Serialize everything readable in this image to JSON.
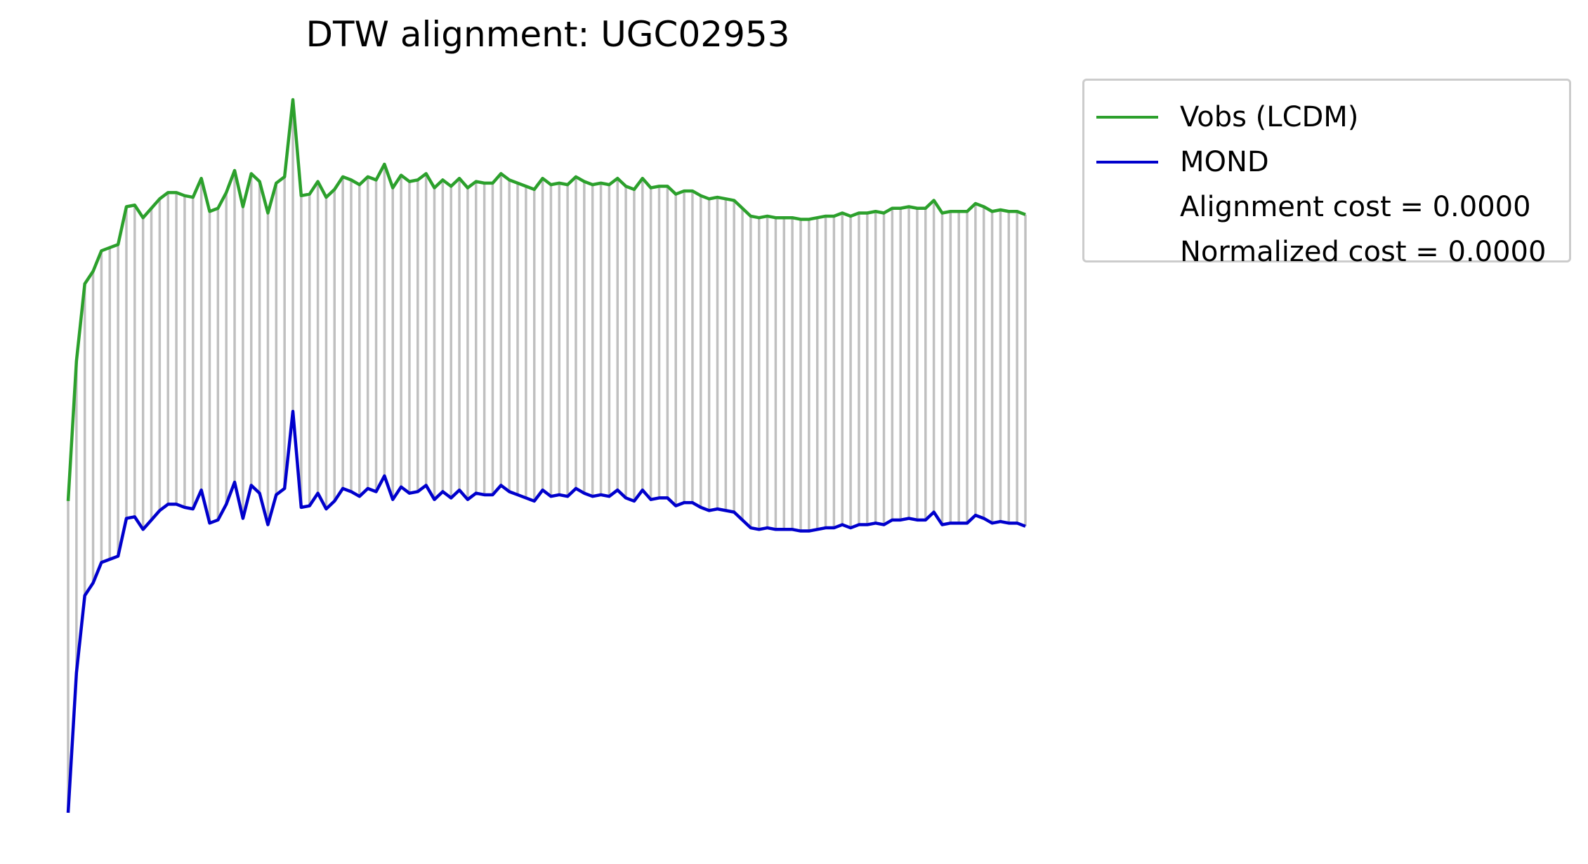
{
  "chart_data": {
    "type": "line",
    "title": "DTW alignment: UGC02953",
    "xlabel": "",
    "ylabel": "",
    "axes_visible": false,
    "grid": false,
    "legend_placement": "outside-upper-right",
    "legend": [
      {
        "label": "Vobs (LCDM)",
        "color": "#2ca02c",
        "type": "line"
      },
      {
        "label": "MOND",
        "color": "#0000cc",
        "type": "line"
      },
      {
        "label": "Alignment cost = 0.0000",
        "type": "text"
      },
      {
        "label": "Normalized cost = 0.0000",
        "type": "text"
      }
    ],
    "alignment_lines_color": "#c0c0c0",
    "series": [
      {
        "name": "Vobs (LCDM)",
        "color": "#2ca02c",
        "values": [
          1.08,
          1.97,
          2.46,
          2.54,
          2.67,
          2.69,
          2.71,
          2.95,
          2.96,
          2.88,
          2.94,
          3.0,
          3.04,
          3.04,
          3.02,
          3.01,
          3.13,
          2.92,
          2.94,
          3.04,
          3.18,
          2.95,
          3.16,
          3.11,
          2.91,
          3.1,
          3.14,
          3.63,
          3.02,
          3.03,
          3.11,
          3.01,
          3.06,
          3.14,
          3.12,
          3.09,
          3.14,
          3.12,
          3.22,
          3.07,
          3.15,
          3.11,
          3.12,
          3.16,
          3.07,
          3.12,
          3.08,
          3.13,
          3.07,
          3.11,
          3.1,
          3.1,
          3.16,
          3.12,
          3.1,
          3.08,
          3.06,
          3.13,
          3.09,
          3.1,
          3.09,
          3.14,
          3.11,
          3.09,
          3.1,
          3.09,
          3.13,
          3.08,
          3.06,
          3.13,
          3.07,
          3.08,
          3.08,
          3.03,
          3.05,
          3.05,
          3.02,
          3.0,
          3.01,
          3.0,
          2.99,
          2.94,
          2.89,
          2.88,
          2.89,
          2.88,
          2.88,
          2.88,
          2.87,
          2.87,
          2.88,
          2.89,
          2.89,
          2.91,
          2.89,
          2.91,
          2.91,
          2.92,
          2.91,
          2.94,
          2.94,
          2.95,
          2.94,
          2.94,
          2.99,
          2.91,
          2.92,
          2.92,
          2.92,
          2.97,
          2.95,
          2.92,
          2.93,
          2.92,
          2.92,
          2.9
        ]
      },
      {
        "name": "MOND",
        "color": "#0000cc",
        "values": [
          -0.9,
          -0.01,
          0.48,
          0.56,
          0.69,
          0.71,
          0.73,
          0.97,
          0.98,
          0.9,
          0.96,
          1.02,
          1.06,
          1.06,
          1.04,
          1.03,
          1.15,
          0.94,
          0.96,
          1.06,
          1.2,
          0.97,
          1.18,
          1.13,
          0.93,
          1.12,
          1.16,
          1.65,
          1.04,
          1.05,
          1.13,
          1.03,
          1.08,
          1.16,
          1.14,
          1.11,
          1.16,
          1.14,
          1.24,
          1.09,
          1.17,
          1.13,
          1.14,
          1.18,
          1.09,
          1.14,
          1.1,
          1.15,
          1.09,
          1.13,
          1.12,
          1.12,
          1.18,
          1.14,
          1.12,
          1.1,
          1.08,
          1.15,
          1.11,
          1.12,
          1.11,
          1.16,
          1.13,
          1.11,
          1.12,
          1.11,
          1.15,
          1.1,
          1.08,
          1.15,
          1.09,
          1.1,
          1.1,
          1.05,
          1.07,
          1.07,
          1.04,
          1.02,
          1.03,
          1.02,
          1.01,
          0.96,
          0.91,
          0.9,
          0.91,
          0.9,
          0.9,
          0.9,
          0.89,
          0.89,
          0.9,
          0.91,
          0.91,
          0.93,
          0.91,
          0.93,
          0.93,
          0.94,
          0.93,
          0.96,
          0.96,
          0.97,
          0.96,
          0.96,
          1.01,
          0.93,
          0.94,
          0.94,
          0.94,
          0.99,
          0.97,
          0.94,
          0.95,
          0.94,
          0.94,
          0.92
        ]
      }
    ]
  }
}
